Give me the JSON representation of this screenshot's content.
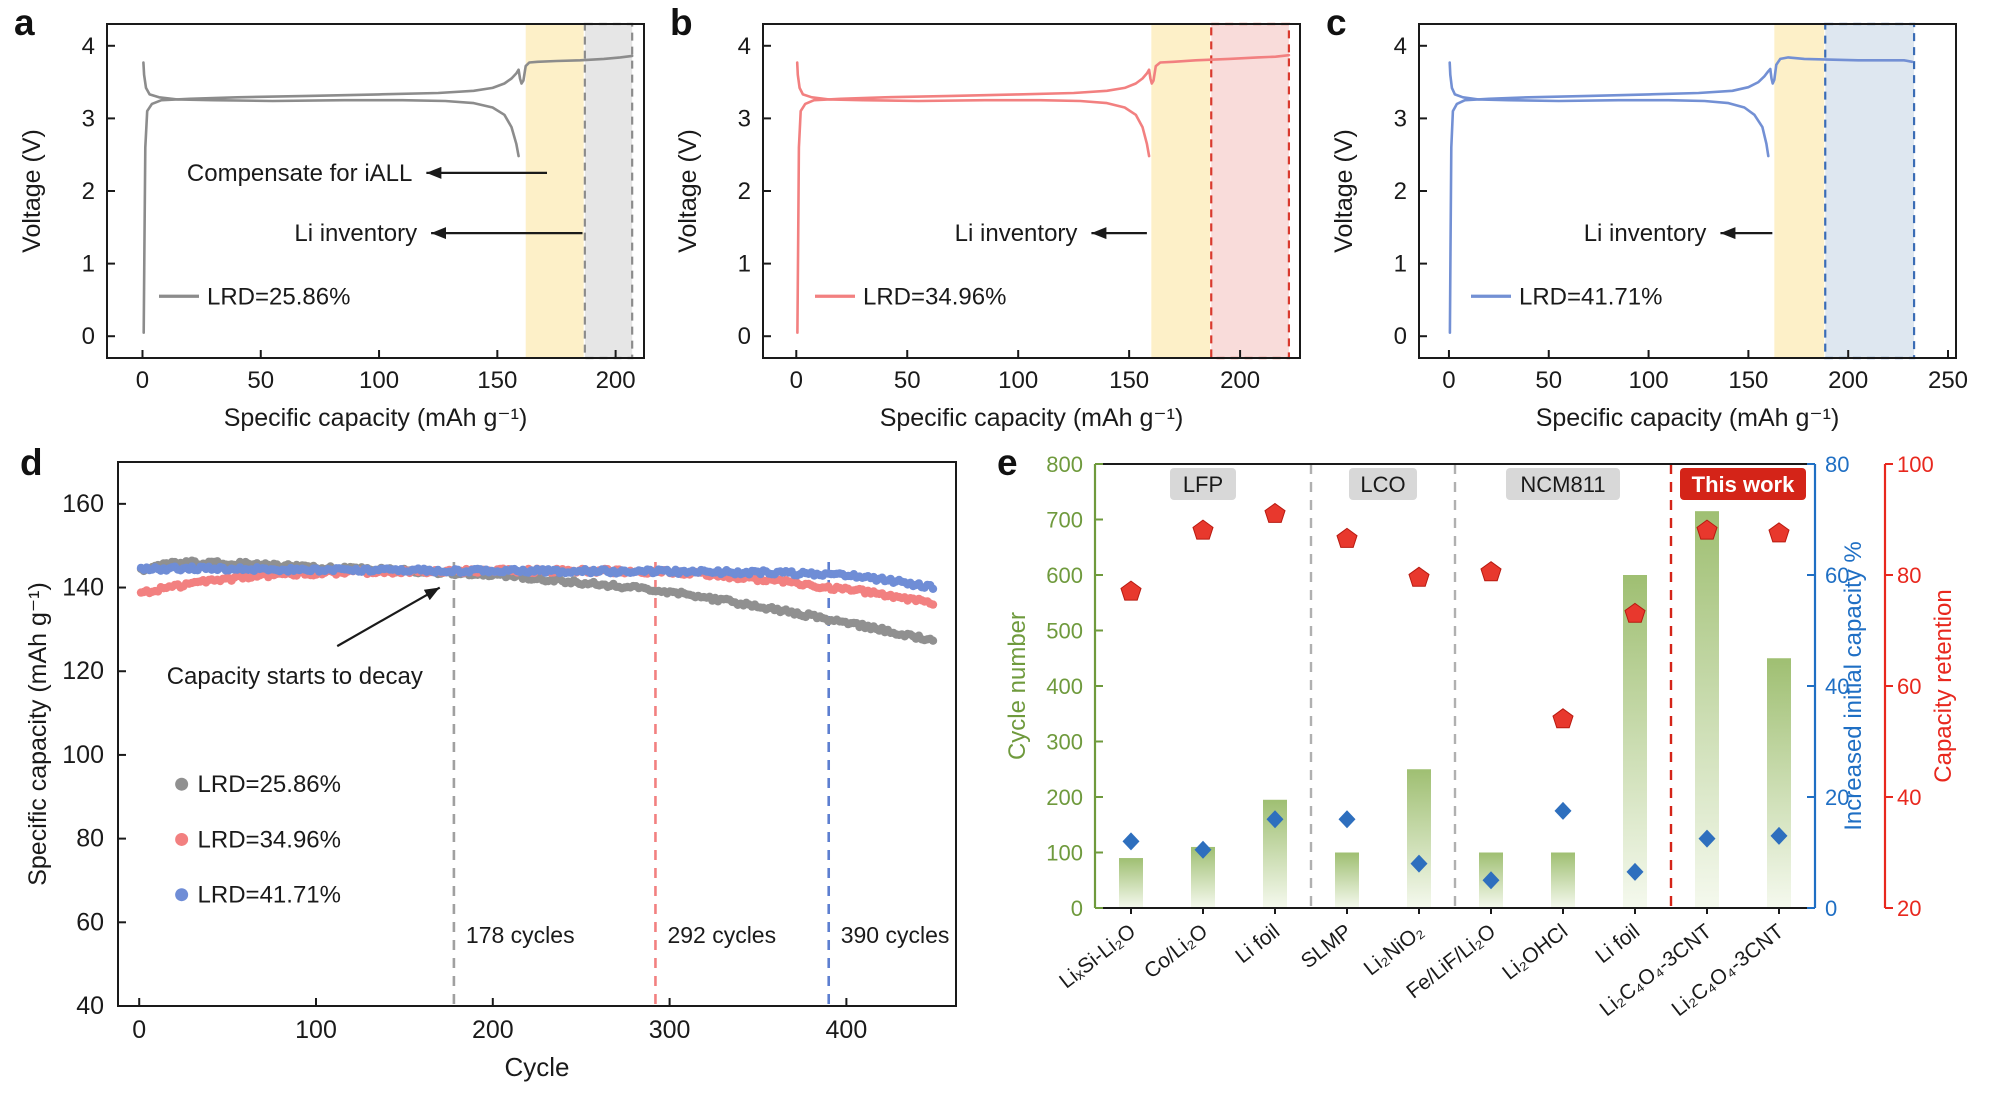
{
  "figure_colors": {
    "gray_series": "#8c8c8c",
    "red_series": "#f28080",
    "blue_series": "#7390d4",
    "yellow_band": "#fdf0c8",
    "axis_green": "#6f9a3d",
    "axis_blue": "#1f6fc4",
    "axis_red": "#e8281e"
  },
  "chart_data": [
    {
      "id": "a",
      "type": "line",
      "panel_label": "a",
      "xlabel": "Specific capacity (mAh g⁻¹)",
      "ylabel": "Voltage (V)",
      "xlim": [
        -15,
        212
      ],
      "xticks": [
        0,
        50,
        100,
        150,
        200
      ],
      "ylim": [
        -0.3,
        4.3
      ],
      "yticks": [
        0,
        1,
        2,
        3,
        4
      ],
      "legend": {
        "label": "LRD=25.86%"
      },
      "series_color": "#8c8c8c",
      "bands": [
        {
          "x0": 162,
          "x1": 186.5,
          "fill": "#fdf0c8",
          "edge": "",
          "dashed": false
        },
        {
          "x0": 187,
          "x1": 207,
          "fill": "#e6e6e6",
          "edge": "#8c8c8c",
          "dashed": true
        }
      ],
      "annotations": [
        {
          "text": "Compensate for iALL",
          "head_x": 120,
          "tail_x": 171,
          "y": 2.25
        },
        {
          "text": "Li inventory",
          "head_x": 122,
          "tail_x": 186,
          "y": 1.42
        }
      ],
      "charge": [
        [
          0.5,
          0.05
        ],
        [
          0.8,
          1.2
        ],
        [
          1.2,
          2.6
        ],
        [
          2,
          3.1
        ],
        [
          4,
          3.2
        ],
        [
          8,
          3.25
        ],
        [
          20,
          3.27
        ],
        [
          40,
          3.29
        ],
        [
          70,
          3.31
        ],
        [
          100,
          3.33
        ],
        [
          125,
          3.35
        ],
        [
          140,
          3.38
        ],
        [
          148,
          3.42
        ],
        [
          153,
          3.48
        ],
        [
          156,
          3.55
        ],
        [
          158,
          3.62
        ],
        [
          159,
          3.67
        ],
        [
          159.6,
          3.55
        ],
        [
          160.2,
          3.48
        ],
        [
          161,
          3.52
        ],
        [
          162,
          3.72
        ],
        [
          163.5,
          3.77
        ],
        [
          167,
          3.78
        ],
        [
          175,
          3.79
        ],
        [
          185,
          3.8
        ],
        [
          195,
          3.82
        ],
        [
          202,
          3.84
        ],
        [
          207,
          3.86
        ]
      ],
      "discharge": [
        [
          0.4,
          3.77
        ],
        [
          0.7,
          3.6
        ],
        [
          1.5,
          3.42
        ],
        [
          3,
          3.33
        ],
        [
          7,
          3.29
        ],
        [
          15,
          3.26
        ],
        [
          30,
          3.25
        ],
        [
          55,
          3.24
        ],
        [
          85,
          3.25
        ],
        [
          110,
          3.25
        ],
        [
          128,
          3.24
        ],
        [
          140,
          3.21
        ],
        [
          148,
          3.15
        ],
        [
          153,
          3.05
        ],
        [
          156,
          2.88
        ],
        [
          158,
          2.65
        ],
        [
          159,
          2.48
        ]
      ]
    },
    {
      "id": "b",
      "type": "line",
      "panel_label": "b",
      "xlabel": "Specific capacity (mAh g⁻¹)",
      "ylabel": "Voltage (V)",
      "xlim": [
        -15,
        227
      ],
      "xticks": [
        0,
        50,
        100,
        150,
        200
      ],
      "ylim": [
        -0.3,
        4.3
      ],
      "yticks": [
        0,
        1,
        2,
        3,
        4
      ],
      "legend": {
        "label": "LRD=34.96%"
      },
      "series_color": "#f28080",
      "bands": [
        {
          "x0": 160,
          "x1": 186.5,
          "fill": "#fdf0c8",
          "edge": "",
          "dashed": false
        },
        {
          "x0": 187,
          "x1": 222,
          "fill": "#f9dcda",
          "edge": "#d93a2e",
          "dashed": true
        }
      ],
      "annotations": [
        {
          "text": "Li inventory",
          "head_x": 133,
          "tail_x": 158,
          "y": 1.42
        }
      ],
      "charge": [
        [
          0.5,
          0.05
        ],
        [
          0.8,
          1.2
        ],
        [
          1.2,
          2.6
        ],
        [
          2,
          3.1
        ],
        [
          4,
          3.2
        ],
        [
          8,
          3.25
        ],
        [
          20,
          3.27
        ],
        [
          40,
          3.29
        ],
        [
          70,
          3.31
        ],
        [
          100,
          3.33
        ],
        [
          125,
          3.35
        ],
        [
          140,
          3.38
        ],
        [
          148,
          3.42
        ],
        [
          153,
          3.48
        ],
        [
          156,
          3.55
        ],
        [
          158,
          3.62
        ],
        [
          159,
          3.67
        ],
        [
          159.6,
          3.55
        ],
        [
          160.2,
          3.48
        ],
        [
          161,
          3.52
        ],
        [
          162,
          3.72
        ],
        [
          164,
          3.77
        ],
        [
          170,
          3.78
        ],
        [
          180,
          3.8
        ],
        [
          195,
          3.82
        ],
        [
          208,
          3.84
        ],
        [
          216,
          3.85
        ],
        [
          222,
          3.87
        ]
      ],
      "discharge": [
        [
          0.4,
          3.77
        ],
        [
          0.7,
          3.6
        ],
        [
          1.5,
          3.42
        ],
        [
          3,
          3.33
        ],
        [
          7,
          3.29
        ],
        [
          15,
          3.26
        ],
        [
          30,
          3.25
        ],
        [
          55,
          3.24
        ],
        [
          85,
          3.25
        ],
        [
          110,
          3.25
        ],
        [
          128,
          3.24
        ],
        [
          140,
          3.21
        ],
        [
          148,
          3.15
        ],
        [
          153,
          3.05
        ],
        [
          156,
          2.88
        ],
        [
          158,
          2.65
        ],
        [
          159,
          2.48
        ]
      ]
    },
    {
      "id": "c",
      "type": "line",
      "panel_label": "c",
      "xlabel": "Specific capacity (mAh g⁻¹)",
      "ylabel": "Voltage (V)",
      "xlim": [
        -15,
        254
      ],
      "xticks": [
        0,
        50,
        100,
        150,
        200,
        250
      ],
      "ylim": [
        -0.3,
        4.3
      ],
      "yticks": [
        0,
        1,
        2,
        3,
        4
      ],
      "legend": {
        "label": "LRD=41.71%"
      },
      "series_color": "#7390d4",
      "bands": [
        {
          "x0": 163,
          "x1": 188,
          "fill": "#fdf0c8",
          "edge": "",
          "dashed": false
        },
        {
          "x0": 188.5,
          "x1": 233,
          "fill": "#dee7f0",
          "edge": "#3a6cb5",
          "dashed": true
        }
      ],
      "annotations": [
        {
          "text": "Li inventory",
          "head_x": 136,
          "tail_x": 162,
          "y": 1.42
        }
      ],
      "charge": [
        [
          0.5,
          0.05
        ],
        [
          0.8,
          1.2
        ],
        [
          1.2,
          2.6
        ],
        [
          2,
          3.1
        ],
        [
          4,
          3.2
        ],
        [
          8,
          3.25
        ],
        [
          20,
          3.27
        ],
        [
          40,
          3.29
        ],
        [
          70,
          3.31
        ],
        [
          100,
          3.33
        ],
        [
          125,
          3.35
        ],
        [
          142,
          3.38
        ],
        [
          150,
          3.43
        ],
        [
          155,
          3.5
        ],
        [
          158,
          3.58
        ],
        [
          160,
          3.65
        ],
        [
          161,
          3.68
        ],
        [
          161.6,
          3.55
        ],
        [
          162.2,
          3.48
        ],
        [
          163,
          3.53
        ],
        [
          164,
          3.74
        ],
        [
          166,
          3.82
        ],
        [
          170,
          3.84
        ],
        [
          178,
          3.82
        ],
        [
          190,
          3.81
        ],
        [
          205,
          3.8
        ],
        [
          218,
          3.8
        ],
        [
          228,
          3.8
        ],
        [
          232,
          3.78
        ]
      ],
      "discharge": [
        [
          0.4,
          3.77
        ],
        [
          0.7,
          3.6
        ],
        [
          1.5,
          3.42
        ],
        [
          3,
          3.33
        ],
        [
          7,
          3.29
        ],
        [
          15,
          3.26
        ],
        [
          30,
          3.25
        ],
        [
          55,
          3.24
        ],
        [
          85,
          3.25
        ],
        [
          110,
          3.25
        ],
        [
          128,
          3.24
        ],
        [
          140,
          3.21
        ],
        [
          148,
          3.15
        ],
        [
          153,
          3.05
        ],
        [
          157,
          2.88
        ],
        [
          159,
          2.65
        ],
        [
          160,
          2.48
        ]
      ]
    },
    {
      "id": "d",
      "type": "scatter",
      "panel_label": "d",
      "xlabel": "Cycle",
      "ylabel": "Specific capacity (mAh g⁻¹)",
      "xlim": [
        -12,
        462
      ],
      "xticks": [
        0,
        100,
        200,
        300,
        400
      ],
      "ylim": [
        40,
        170
      ],
      "yticks": [
        40,
        60,
        80,
        100,
        120,
        140,
        160
      ],
      "series": [
        {
          "name": "LRD=25.86%",
          "color": "#909090",
          "control_points": [
            [
              1,
              144.2
            ],
            [
              10,
              145.3
            ],
            [
              25,
              146
            ],
            [
              50,
              145.8
            ],
            [
              80,
              145.2
            ],
            [
              110,
              144.7
            ],
            [
              140,
              144.2
            ],
            [
              178,
              143.5
            ],
            [
              210,
              142.7
            ],
            [
              240,
              141.6
            ],
            [
              270,
              140.4
            ],
            [
              300,
              138.9
            ],
            [
              330,
              137
            ],
            [
              360,
              134.8
            ],
            [
              390,
              132.4
            ],
            [
              420,
              129.9
            ],
            [
              450,
              127.3
            ]
          ]
        },
        {
          "name": "LRD=34.96%",
          "color": "#f28080",
          "control_points": [
            [
              1,
              138.6
            ],
            [
              10,
              139.4
            ],
            [
              30,
              141
            ],
            [
              60,
              142.5
            ],
            [
              90,
              143.3
            ],
            [
              120,
              143.7
            ],
            [
              160,
              143.9
            ],
            [
              200,
              144
            ],
            [
              250,
              144
            ],
            [
              292,
              143.8
            ],
            [
              320,
              143.1
            ],
            [
              350,
              142
            ],
            [
              380,
              140.6
            ],
            [
              410,
              139
            ],
            [
              430,
              137.8
            ],
            [
              450,
              136
            ]
          ]
        },
        {
          "name": "LRD=41.71%",
          "color": "#6f8dd6",
          "control_points": [
            [
              1,
              144.3
            ],
            [
              20,
              144.6
            ],
            [
              60,
              144.4
            ],
            [
              100,
              144.2
            ],
            [
              150,
              144.1
            ],
            [
              200,
              144
            ],
            [
              250,
              143.9
            ],
            [
              300,
              143.8
            ],
            [
              350,
              143.6
            ],
            [
              390,
              143.2
            ],
            [
              410,
              142.5
            ],
            [
              430,
              141.4
            ],
            [
              450,
              139.9
            ]
          ]
        }
      ],
      "decay_markers": [
        {
          "cycle": 178,
          "label": "178 cycles",
          "color": "#a0a0a0"
        },
        {
          "cycle": 292,
          "label": "292 cycles",
          "color": "#f28080"
        },
        {
          "cycle": 390,
          "label": "390 cycles",
          "color": "#5d7fd0"
        }
      ],
      "annotation": {
        "text": "Capacity starts to decay",
        "text_x": 88,
        "text_y": 117,
        "tail": [
          112,
          126
        ],
        "head": [
          170,
          140
        ]
      }
    },
    {
      "id": "e",
      "type": "bar",
      "panel_label": "e",
      "left_axis": {
        "label": "Cycle number",
        "color": "#6f9a3d",
        "lim": [
          0,
          800
        ],
        "ticks": [
          0,
          100,
          200,
          300,
          400,
          500,
          600,
          700,
          800
        ]
      },
      "blue_axis": {
        "label": "Increased initial capacity %",
        "color": "#1f6fc4",
        "lim": [
          0,
          80
        ],
        "ticks": [
          0,
          20,
          40,
          60,
          80
        ]
      },
      "red_axis": {
        "label": "Capacity retention",
        "color": "#e8281e",
        "lim": [
          20,
          100
        ],
        "ticks": [
          20,
          40,
          60,
          80,
          100
        ]
      },
      "categories": [
        "LiₓSi-Li₂O",
        "Co/Li₂O",
        "Li foil",
        "SLMP",
        "Li₂NiO₂",
        "Fe/LiF/Li₂O",
        "Li₂OHCl",
        "Li foil",
        "Li₂C₄O₄-3CNT",
        "Li₂C₄O₄-3CNT"
      ],
      "cycle_number": [
        90,
        110,
        195,
        100,
        250,
        100,
        100,
        600,
        715,
        450
      ],
      "increased_initial_capacity": [
        12,
        10.5,
        16,
        16,
        8,
        5,
        17.5,
        6.5,
        12.5,
        13
      ],
      "capacity_retention": [
        77,
        88,
        91,
        86.5,
        79.5,
        80.5,
        54,
        73,
        88,
        87.5
      ],
      "groups": [
        {
          "label": "LFP",
          "center": 2,
          "bg": "#d8d8d8",
          "fg": "#1a1a1a",
          "width": 66
        },
        {
          "label": "LCO",
          "center": 4.5,
          "bg": "#d8d8d8",
          "fg": "#1a1a1a",
          "width": 68
        },
        {
          "label": "NCM811",
          "center": 7,
          "bg": "#d8d8d8",
          "fg": "#1a1a1a",
          "width": 114
        },
        {
          "label": "This work",
          "center": 9.5,
          "bg": "#d42418",
          "fg": "#ffffff",
          "width": 126
        }
      ],
      "separators": [
        {
          "after": 3,
          "color": "#b0b0b0"
        },
        {
          "after": 5,
          "color": "#b0b0b0"
        },
        {
          "after": 8,
          "color": "#d42418"
        }
      ],
      "bar_gradient": {
        "top": "#9fbf72",
        "bottom": "#f5f9ee"
      },
      "diamond_color": "#2e6fbe",
      "pentagon_color": "#e8382d"
    }
  ]
}
